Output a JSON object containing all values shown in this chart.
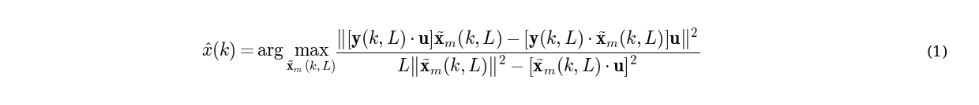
{
  "equation": "$\\hat{x}(k) = \\arg\\max_{\\tilde{\\mathbf{x}}_m(k,L)} \\dfrac{\\left\\|\\left[\\mathbf{y}(k,L)\\cdot\\mathbf{u}\\right]\\tilde{\\mathbf{x}}_m(k,L) - \\left[\\mathbf{y}(k,L)\\cdot\\tilde{\\mathbf{x}}_m(k,L)\\right]\\mathbf{u}\\right\\|^2}{L\\left\\|\\tilde{\\mathbf{x}}_m(k,L)\\right\\|^2 - \\left[\\tilde{\\mathbf{x}}_m(k,L)\\cdot\\mathbf{u}\\right]^2}$",
  "label": "(1)",
  "background_color": "#ffffff",
  "text_color": "#000000",
  "eq_fontsize": 17,
  "label_fontsize": 14,
  "fig_width": 12.4,
  "fig_height": 1.34,
  "dpi": 100
}
